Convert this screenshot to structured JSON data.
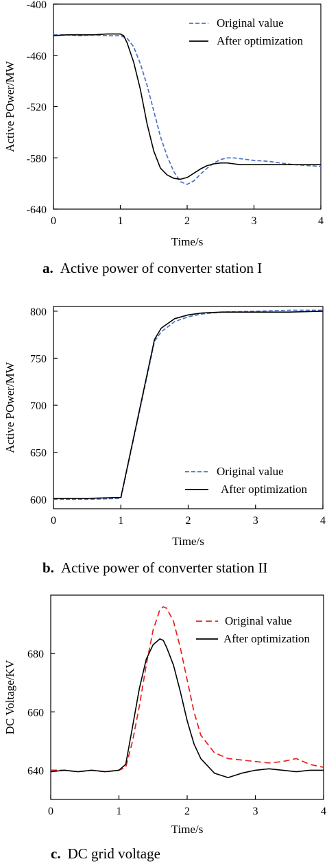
{
  "chart_data": [
    {
      "type": "line",
      "caption_letter": "a.",
      "caption_text": "Active power of converter station I",
      "xlabel": "Time/s",
      "ylabel": "Active POwer/MW",
      "xlim": [
        0,
        4
      ],
      "ylim": [
        -640,
        -400
      ],
      "xticks": [
        0,
        1,
        2,
        3,
        4
      ],
      "yticks": [
        -400,
        -460,
        -520,
        -580,
        -640
      ],
      "grid": false,
      "legend_position": "top-right",
      "series": [
        {
          "name": "Original value",
          "style": "dashed",
          "color": "#4a72c4",
          "x": [
            0,
            0.2,
            0.4,
            0.6,
            0.8,
            1.0,
            1.1,
            1.2,
            1.3,
            1.4,
            1.5,
            1.6,
            1.7,
            1.8,
            1.9,
            2.0,
            2.1,
            2.2,
            2.3,
            2.4,
            2.5,
            2.6,
            2.7,
            2.8,
            3.0,
            3.2,
            3.4,
            3.6,
            3.8,
            4.0
          ],
          "y": [
            -436,
            -436,
            -437,
            -436,
            -437,
            -437,
            -440,
            -450,
            -470,
            -495,
            -525,
            -555,
            -578,
            -596,
            -608,
            -611,
            -607,
            -599,
            -592,
            -586,
            -582,
            -580,
            -580,
            -581,
            -583,
            -584,
            -586,
            -588,
            -589,
            -590
          ]
        },
        {
          "name": "After optimization",
          "style": "solid",
          "color": "#000000",
          "x": [
            0,
            0.2,
            0.4,
            0.6,
            0.8,
            1.0,
            1.05,
            1.1,
            1.2,
            1.3,
            1.4,
            1.5,
            1.6,
            1.7,
            1.8,
            1.9,
            2.0,
            2.1,
            2.2,
            2.3,
            2.4,
            2.5,
            2.6,
            2.7,
            2.8,
            3.0,
            3.2,
            3.4,
            3.6,
            3.8,
            4.0
          ],
          "y": [
            -437,
            -436,
            -436,
            -436,
            -435,
            -435,
            -437,
            -445,
            -468,
            -500,
            -540,
            -572,
            -592,
            -600,
            -604,
            -605,
            -603,
            -598,
            -593,
            -589,
            -587,
            -586,
            -586,
            -587,
            -588,
            -588,
            -588,
            -588,
            -588,
            -588,
            -588
          ]
        }
      ]
    },
    {
      "type": "line",
      "caption_letter": "b.",
      "caption_text": "Active power of converter station II",
      "xlabel": "Time/s",
      "ylabel": "Active POwer/MW",
      "xlim": [
        0,
        4
      ],
      "ylim": [
        590,
        805
      ],
      "xticks": [
        0,
        1,
        2,
        3,
        4
      ],
      "yticks": [
        600,
        650,
        700,
        750,
        800
      ],
      "grid": false,
      "legend_position": "bottom-right",
      "series": [
        {
          "name": "Original value",
          "style": "dashed",
          "color": "#4a72c4",
          "x": [
            0,
            0.5,
            1.0,
            1.5,
            1.6,
            1.8,
            2.0,
            2.2,
            2.5,
            3.0,
            3.5,
            4.0
          ],
          "y": [
            600,
            600,
            601,
            768,
            778,
            789,
            794,
            797,
            799,
            800,
            801,
            801
          ]
        },
        {
          "name": "After optimization",
          "style": "solid",
          "color": "#000000",
          "x": [
            0,
            0.5,
            1.0,
            1.5,
            1.6,
            1.8,
            2.0,
            2.2,
            2.5,
            3.0,
            3.5,
            4.0
          ],
          "y": [
            601,
            601,
            602,
            770,
            782,
            792,
            796,
            798,
            799,
            799,
            799,
            800
          ]
        }
      ]
    },
    {
      "type": "line",
      "caption_letter": "c.",
      "caption_text": "DC grid voltage",
      "xlabel": "Time/s",
      "ylabel": "DC Voltage/KV",
      "xlim": [
        0,
        4
      ],
      "ylim": [
        630,
        700
      ],
      "xticks": [
        0,
        1,
        2,
        3,
        4
      ],
      "yticks": [
        640,
        660,
        680
      ],
      "grid": false,
      "legend_position": "top-right",
      "series": [
        {
          "name": "Original value",
          "style": "dashed",
          "color": "#e8201c",
          "x": [
            0,
            0.2,
            0.4,
            0.6,
            0.8,
            1.0,
            1.1,
            1.2,
            1.3,
            1.4,
            1.5,
            1.6,
            1.65,
            1.7,
            1.8,
            1.9,
            2.0,
            2.1,
            2.2,
            2.4,
            2.6,
            2.8,
            3.0,
            3.2,
            3.4,
            3.6,
            3.8,
            4.0
          ],
          "y": [
            640,
            640,
            639.5,
            640,
            639.5,
            640,
            641,
            650,
            662,
            676,
            688,
            695,
            696,
            695.5,
            691,
            682,
            671,
            660,
            652,
            646,
            644,
            643.5,
            643,
            642.5,
            643,
            644,
            642,
            641
          ]
        },
        {
          "name": "After optimization",
          "style": "solid",
          "color": "#000000",
          "x": [
            0,
            0.2,
            0.4,
            0.6,
            0.8,
            1.0,
            1.1,
            1.2,
            1.3,
            1.4,
            1.5,
            1.6,
            1.65,
            1.7,
            1.8,
            1.9,
            2.0,
            2.1,
            2.2,
            2.4,
            2.6,
            2.8,
            3.0,
            3.2,
            3.4,
            3.6,
            3.8,
            4.0
          ],
          "y": [
            639.5,
            640,
            639.5,
            640,
            639.5,
            640,
            642,
            655,
            668,
            678,
            683,
            685,
            684.5,
            682,
            676,
            667,
            657,
            649,
            644,
            639,
            637.5,
            639,
            640,
            640.5,
            640,
            639.5,
            640,
            640
          ]
        }
      ]
    }
  ]
}
